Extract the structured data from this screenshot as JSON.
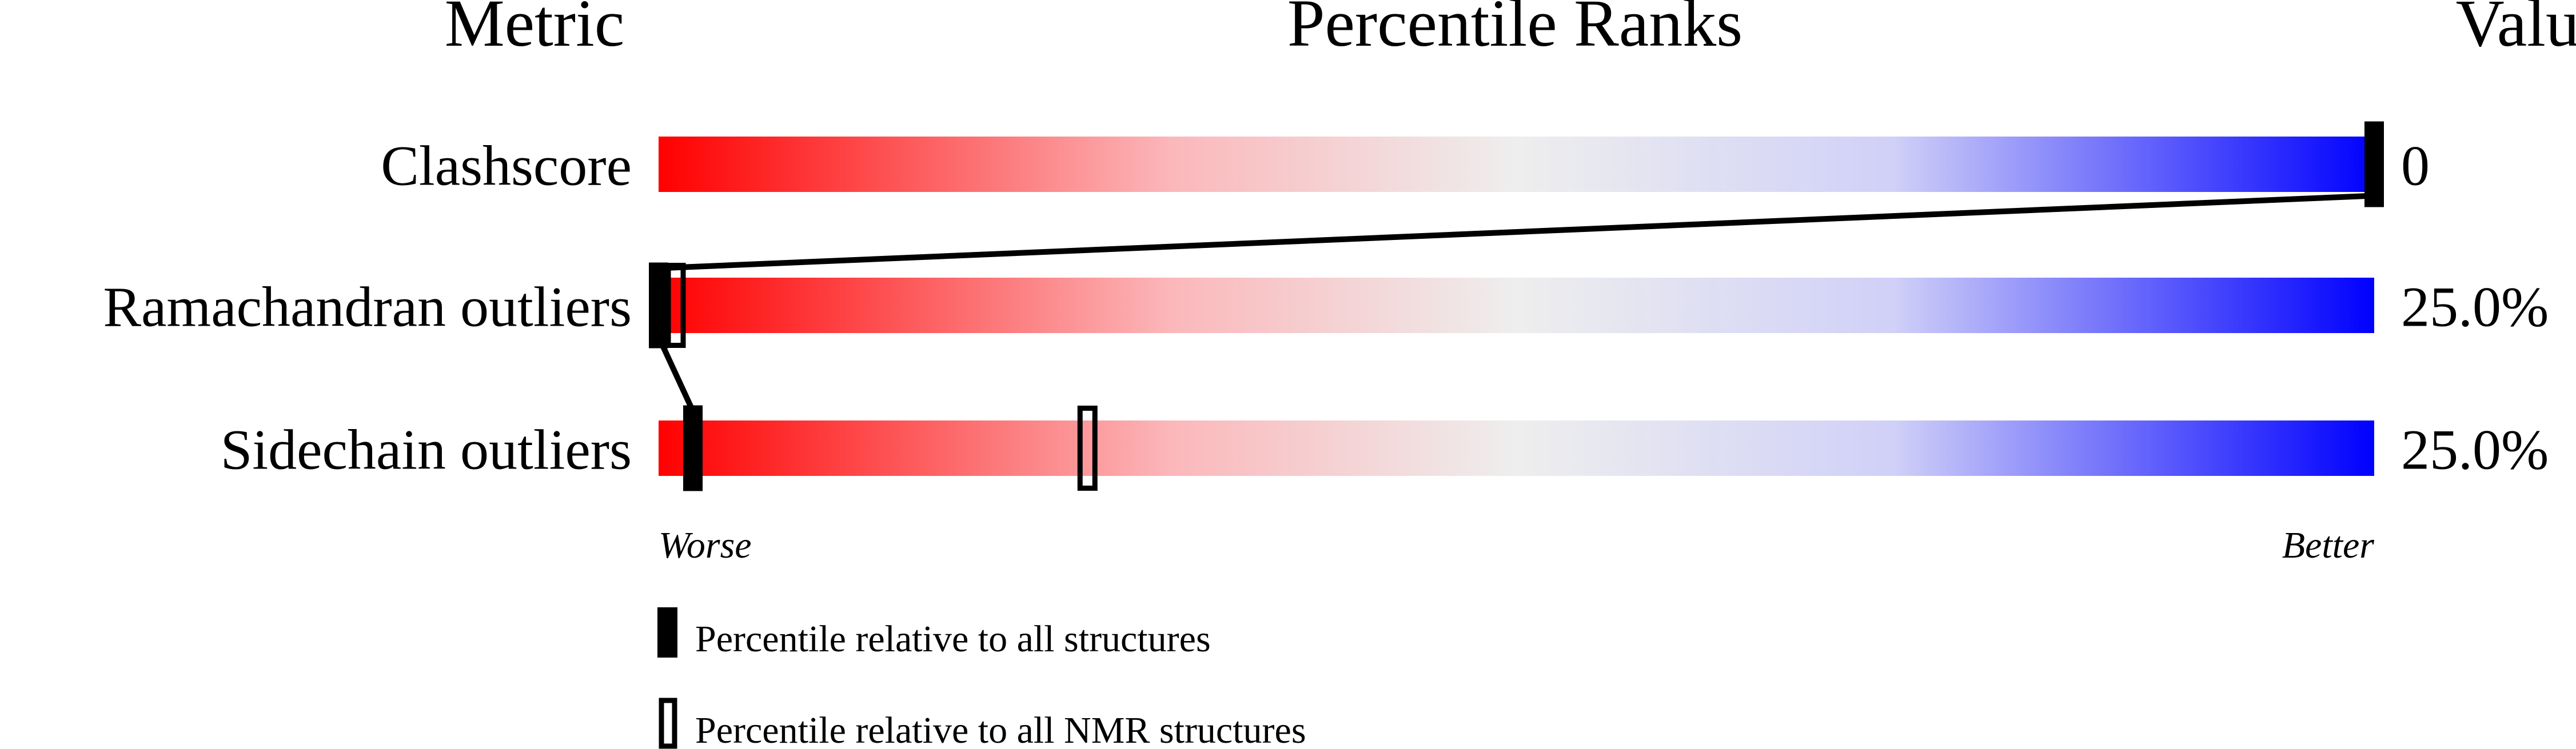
{
  "chart_data": {
    "type": "percentile-bar",
    "headers": {
      "metric": "Metric",
      "ranks": "Percentile Ranks",
      "value": "Value"
    },
    "xlim": [
      0,
      100
    ],
    "scale_labels": {
      "low": "Worse",
      "high": "Better"
    },
    "gradient_colors": [
      "#ff0000",
      "#eeeeee",
      "#0000ff"
    ],
    "rows": [
      {
        "metric": "Clashscore",
        "value": "0",
        "percentile_all": 100,
        "percentile_nmr": null
      },
      {
        "metric": "Ramachandran outliers",
        "value": "25.0%",
        "percentile_all": 0,
        "percentile_nmr": 1
      },
      {
        "metric": "Sidechain outliers",
        "value": "25.0%",
        "percentile_all": 2,
        "percentile_nmr": 25
      }
    ],
    "legend": [
      {
        "label": "Percentile relative to all structures",
        "marker": "filled"
      },
      {
        "label": "Percentile relative to all NMR structures",
        "marker": "open"
      }
    ]
  }
}
